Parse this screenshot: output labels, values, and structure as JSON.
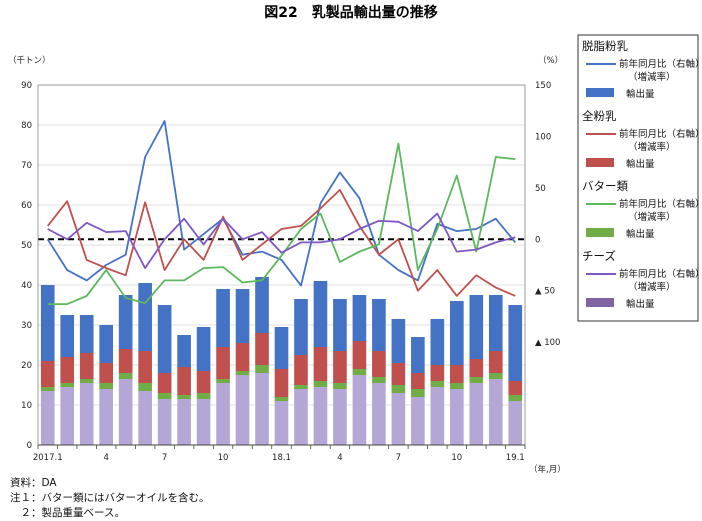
{
  "chart_data": {
    "type": "bar+line",
    "title": "図22　乳製品輸出量の推移",
    "left_axis_unit": "（千トン）",
    "right_axis_unit": "（%）",
    "x_unit": "（年,月）",
    "left_ylim": [
      0,
      90
    ],
    "left_ticks": [
      "0",
      "10",
      "20",
      "30",
      "40",
      "50",
      "60",
      "70",
      "80",
      "90"
    ],
    "right_ylim": [
      -200,
      150
    ],
    "right_ticks": [
      {
        "value": 150,
        "label": "150"
      },
      {
        "value": 100,
        "label": "100"
      },
      {
        "value": 50,
        "label": "50"
      },
      {
        "value": 0,
        "label": "0"
      },
      {
        "value": -50,
        "label": "▲ 50"
      },
      {
        "value": -100,
        "label": "▲ 100"
      }
    ],
    "grid": true,
    "categories": [
      "2017.1",
      "2",
      "3",
      "4",
      "5",
      "6",
      "7",
      "8",
      "9",
      "10",
      "11",
      "12",
      "18.1",
      "2",
      "3",
      "4",
      "5",
      "6",
      "7",
      "8",
      "9",
      "10",
      "11",
      "12",
      "19.1"
    ],
    "x_tick_labels": [
      {
        "index": 0,
        "label": "2017.1"
      },
      {
        "index": 3,
        "label": "4"
      },
      {
        "index": 6,
        "label": "7"
      },
      {
        "index": 9,
        "label": "10"
      },
      {
        "index": 12,
        "label": "18.1"
      },
      {
        "index": 15,
        "label": "4"
      },
      {
        "index": 18,
        "label": "7"
      },
      {
        "index": 21,
        "label": "10"
      },
      {
        "index": 24,
        "label": "19.1"
      }
    ],
    "stack_order": [
      "チーズ",
      "バター類",
      "全粉乳",
      "脱脂粉乳"
    ],
    "series": [
      {
        "name": "脱脂粉乳",
        "axis": "left",
        "kind": "bar",
        "color": "#4472c4",
        "values": [
          19,
          10.5,
          9.5,
          9.5,
          13.5,
          17,
          17,
          8,
          11,
          14.5,
          13.5,
          14,
          10.5,
          14,
          16.5,
          13,
          11.5,
          13,
          11,
          9,
          11.5,
          16,
          16,
          14,
          19
        ]
      },
      {
        "name": "全粉乳",
        "axis": "left",
        "kind": "bar",
        "color": "#c0504d",
        "values": [
          6.5,
          6.5,
          6.5,
          5,
          6,
          8,
          5,
          7,
          5.5,
          8,
          7,
          8,
          7,
          7.5,
          8.5,
          8,
          7,
          6.5,
          5.5,
          4,
          4,
          4.5,
          4.5,
          5.5,
          3.5
        ]
      },
      {
        "name": "バター類",
        "axis": "left",
        "kind": "bar",
        "color": "#70ad47",
        "values": [
          1,
          1,
          1,
          1.5,
          1.5,
          2,
          1.5,
          1,
          1.5,
          1,
          1,
          2,
          1,
          1,
          1.5,
          1.5,
          1.5,
          1.5,
          2,
          2,
          1.5,
          1.5,
          1.5,
          1.5,
          1.5
        ]
      },
      {
        "name": "チーズ",
        "axis": "left",
        "kind": "bar",
        "color": "#b4a7d6",
        "values": [
          13.5,
          14.5,
          15.5,
          14,
          16.5,
          13.5,
          11.5,
          11.5,
          11.5,
          15.5,
          17.5,
          18,
          11,
          14,
          14.5,
          14,
          17.5,
          15.5,
          13,
          12,
          14.5,
          14,
          15.5,
          16.5,
          11
        ]
      },
      {
        "name": "脱脂粉乳 前年同月比（右軸）（増減率）",
        "axis": "right",
        "kind": "line",
        "color": "#4472c4",
        "values": [
          0,
          -30,
          -40,
          -25,
          -15,
          80,
          115,
          -10,
          5,
          20,
          -15,
          -12,
          -20,
          -45,
          35,
          65,
          40,
          -15,
          -30,
          -40,
          15,
          8,
          10,
          20,
          -3
        ]
      },
      {
        "name": "全粉乳 前年同月比（右軸）（増減率）",
        "axis": "right",
        "kind": "line",
        "color": "#c0504d",
        "values": [
          13,
          37,
          -20,
          -28,
          -35,
          36,
          -30,
          0,
          -20,
          22,
          -20,
          -5,
          10,
          13,
          30,
          48,
          13,
          -15,
          0,
          -50,
          -30,
          -55,
          -35,
          -47,
          -55
        ]
      },
      {
        "name": "バター類 前年同月比（右軸）（増減率）",
        "axis": "right",
        "kind": "line",
        "color": "#5cb85c",
        "values": [
          -63,
          -63,
          -55,
          -30,
          -57,
          -62,
          -40,
          -40,
          -28,
          -27,
          -42,
          -40,
          -16,
          10,
          25,
          -22,
          -12,
          -5,
          93,
          -30,
          10,
          62,
          -12,
          80,
          78
        ]
      },
      {
        "name": "チーズ 前年同月比（右軸）（増減率）",
        "axis": "right",
        "kind": "line",
        "color": "#7e57c2",
        "values": [
          10,
          0,
          16,
          7,
          8,
          -28,
          0,
          20,
          -5,
          20,
          0,
          7,
          -13,
          -3,
          -3,
          0,
          10,
          18,
          17,
          8,
          25,
          -12,
          -10,
          -3,
          2
        ]
      }
    ],
    "zero_line": {
      "axis": "right",
      "value": 0,
      "style": "dashed"
    }
  },
  "legend": {
    "groups": [
      {
        "heading": "脱脂粉乳",
        "line_label": "前年同月比（右軸）",
        "line_sub": "（増減率）",
        "bar_label": "輸出量",
        "line_color": "#4472c4",
        "bar_color": "#4472c4"
      },
      {
        "heading": "全粉乳",
        "line_label": "前年同月比（右軸）",
        "line_sub": "（増減率）",
        "bar_label": "輸出量",
        "line_color": "#c0504d",
        "bar_color": "#c0504d"
      },
      {
        "heading": "バター類",
        "line_label": "前年同月比（右軸）",
        "line_sub": "（増減率）",
        "bar_label": "輸出量",
        "line_color": "#5cb85c",
        "bar_color": "#70ad47"
      },
      {
        "heading": "チーズ",
        "line_label": "前年同月比（右軸）",
        "line_sub": "（増減率）",
        "bar_label": "輸出量",
        "line_color": "#7e57c2",
        "bar_color": "#8064a2"
      }
    ]
  },
  "notes": [
    "資料：DA",
    "注１：バター類にはバターオイルを含む。",
    "　２：製品重量ベース。"
  ]
}
